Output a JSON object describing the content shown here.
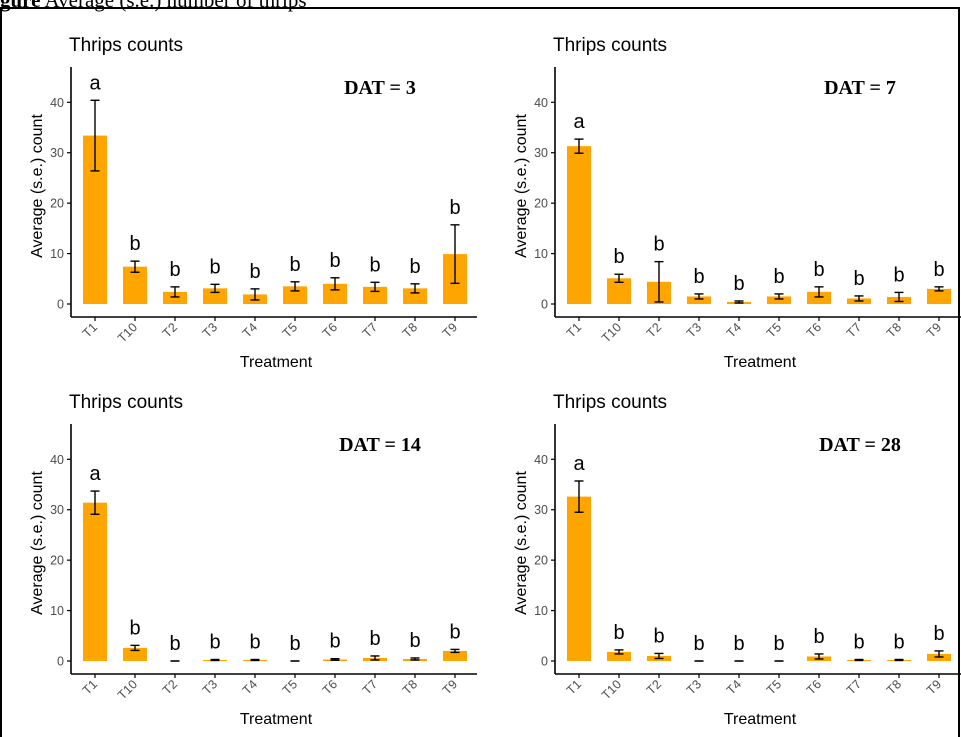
{
  "caption": {
    "bold": "gure",
    "rest": "Average (s.e.) number of thrips"
  },
  "panel_title": "Thrips counts",
  "colors": {
    "bar": "#FFA500",
    "axis": "#000000",
    "tick_text": "#4d4d4d"
  },
  "chart_data": [
    {
      "type": "bar",
      "title": "Thrips counts",
      "annotation": "DAT = 3",
      "xlabel": "Treatment",
      "ylabel": "Average (s.e.) count",
      "categories": [
        "T1",
        "T10",
        "T2",
        "T3",
        "T4",
        "T5",
        "T6",
        "T7",
        "T8",
        "T9"
      ],
      "values": [
        33.4,
        7.4,
        2.4,
        3.1,
        1.9,
        3.5,
        4.0,
        3.4,
        3.1,
        9.9
      ],
      "errors": [
        7.0,
        1.1,
        1.0,
        0.8,
        1.1,
        0.9,
        1.2,
        0.9,
        0.9,
        5.8
      ],
      "letters": [
        "a",
        "b",
        "b",
        "b",
        "b",
        "b",
        "b",
        "b",
        "b",
        "b"
      ],
      "yticks": [
        0,
        10,
        20,
        30,
        40
      ],
      "ylim": [
        0,
        47
      ]
    },
    {
      "type": "bar",
      "title": "Thrips counts",
      "annotation": "DAT = 7",
      "xlabel": "Treatment",
      "ylabel": "Average (s.e.) count",
      "categories": [
        "T1",
        "T10",
        "T2",
        "T3",
        "T4",
        "T5",
        "T6",
        "T7",
        "T8",
        "T9"
      ],
      "values": [
        31.3,
        5.1,
        4.4,
        1.5,
        0.4,
        1.5,
        2.4,
        1.1,
        1.4,
        3.0
      ],
      "errors": [
        1.4,
        0.8,
        4.0,
        0.5,
        0.2,
        0.5,
        1.0,
        0.5,
        0.9,
        0.4
      ],
      "letters": [
        "a",
        "b",
        "b",
        "b",
        "b",
        "b",
        "b",
        "b",
        "b",
        "b"
      ],
      "yticks": [
        0,
        10,
        20,
        30,
        40
      ],
      "ylim": [
        0,
        47
      ]
    },
    {
      "type": "bar",
      "title": "Thrips counts",
      "annotation": "DAT = 14",
      "xlabel": "Treatment",
      "ylabel": "Average (s.e.) count",
      "categories": [
        "T1",
        "T10",
        "T2",
        "T3",
        "T4",
        "T5",
        "T6",
        "T7",
        "T8",
        "T9"
      ],
      "values": [
        31.4,
        2.6,
        0,
        0.2,
        0.2,
        0,
        0.3,
        0.6,
        0.4,
        2.0
      ],
      "errors": [
        2.3,
        0.5,
        0,
        0.1,
        0.1,
        0,
        0.15,
        0.4,
        0.2,
        0.3
      ],
      "letters": [
        "a",
        "b",
        "b",
        "b",
        "b",
        "b",
        "b",
        "b",
        "b",
        "b"
      ],
      "yticks": [
        0,
        10,
        20,
        30,
        40
      ],
      "ylim": [
        0,
        47
      ]
    },
    {
      "type": "bar",
      "title": "Thrips counts",
      "annotation": "DAT = 28",
      "xlabel": "Treatment",
      "ylabel": "Average (s.e.) count",
      "categories": [
        "T1",
        "T10",
        "T2",
        "T3",
        "T4",
        "T5",
        "T6",
        "T7",
        "T8",
        "T9"
      ],
      "values": [
        32.6,
        1.8,
        1.0,
        0,
        0,
        0,
        0.9,
        0.2,
        0.2,
        1.4
      ],
      "errors": [
        3.1,
        0.4,
        0.5,
        0,
        0,
        0,
        0.5,
        0.1,
        0.1,
        0.6
      ],
      "letters": [
        "a",
        "b",
        "b",
        "b",
        "b",
        "b",
        "b",
        "b",
        "b",
        "b"
      ],
      "yticks": [
        0,
        10,
        20,
        30,
        40
      ],
      "ylim": [
        0,
        47
      ]
    }
  ]
}
